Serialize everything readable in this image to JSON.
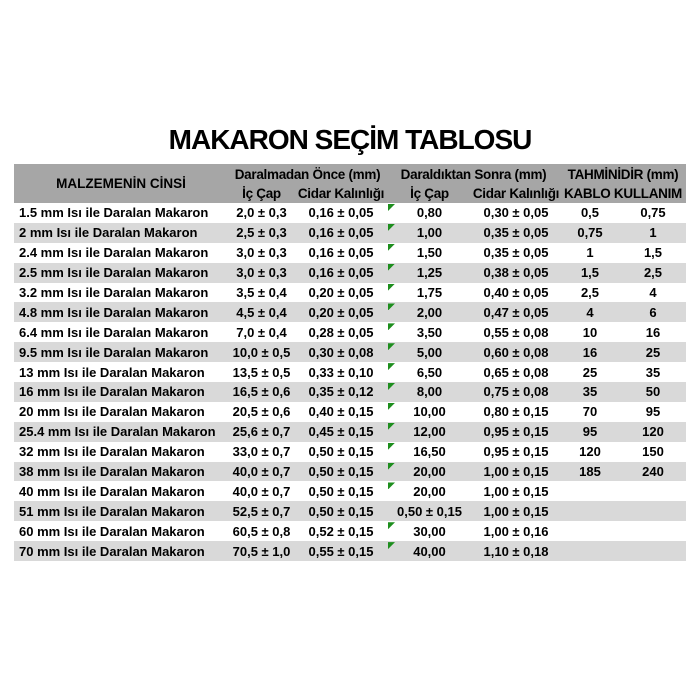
{
  "title": "MAKARON SEÇİM TABLOSU",
  "colors": {
    "header_bg": "#a6a6a6",
    "stripe_bg": "#d9d9d9",
    "text": "#000000",
    "marker_green": "#1e8e1e"
  },
  "table": {
    "col1_header": "MALZEMENİN CİNSİ",
    "groups": [
      {
        "label": "Daralmadan Önce (mm)",
        "sub": [
          "İç Çap",
          "Cidar Kalınlığı"
        ]
      },
      {
        "label": "Daraldıktan Sonra (mm)",
        "sub": [
          "İç Çap",
          "Cidar Kalınlığı"
        ]
      },
      {
        "label": "TAHMİNİDİR (mm)",
        "sub": [
          "KABLO KULLANIM"
        ]
      }
    ],
    "marker_icon": "error-indicator-triangle",
    "rows": [
      {
        "name": "1.5 mm Isı ile Daralan Makaron",
        "cells": [
          "2,0 ± 0,3",
          "0,16 ± 0,05",
          "0,80",
          "0,30 ± 0,05",
          "0,5",
          "0,75"
        ],
        "marker": true
      },
      {
        "name": "2 mm Isı ile Daralan Makaron",
        "cells": [
          "2,5 ± 0,3",
          "0,16 ± 0,05",
          "1,00",
          "0,35 ± 0,05",
          "0,75",
          "1"
        ],
        "marker": true
      },
      {
        "name": "2.4 mm Isı ile Daralan Makaron",
        "cells": [
          "3,0 ± 0,3",
          "0,16 ± 0,05",
          "1,50",
          "0,35 ± 0,05",
          "1",
          "1,5"
        ],
        "marker": true
      },
      {
        "name": "2.5 mm Isı ile Daralan Makaron",
        "cells": [
          "3,0 ± 0,3",
          "0,16 ± 0,05",
          "1,25",
          "0,38 ± 0,05",
          "1,5",
          "2,5"
        ],
        "marker": true
      },
      {
        "name": "3.2 mm Isı ile Daralan Makaron",
        "cells": [
          "3,5 ± 0,4",
          "0,20 ± 0,05",
          "1,75",
          "0,40 ± 0,05",
          "2,5",
          "4"
        ],
        "marker": true
      },
      {
        "name": "4.8 mm Isı ile Daralan Makaron",
        "cells": [
          "4,5 ± 0,4",
          "0,20 ± 0,05",
          "2,00",
          "0,47 ± 0,05",
          "4",
          "6"
        ],
        "marker": true
      },
      {
        "name": "6.4 mm Isı ile Daralan Makaron",
        "cells": [
          "7,0 ± 0,4",
          "0,28 ± 0,05",
          "3,50",
          "0,55 ± 0,08",
          "10",
          "16"
        ],
        "marker": true
      },
      {
        "name": "9.5 mm Isı ile Daralan Makaron",
        "cells": [
          "10,0 ± 0,5",
          "0,30 ± 0,08",
          "5,00",
          "0,60 ± 0,08",
          "16",
          "25"
        ],
        "marker": true
      },
      {
        "name": "13 mm Isı ile Daralan Makaron",
        "cells": [
          "13,5 ± 0,5",
          "0,33 ± 0,10",
          "6,50",
          "0,65 ± 0,08",
          "25",
          "35"
        ],
        "marker": true
      },
      {
        "name": "16 mm Isı ile Daralan Makaron",
        "cells": [
          "16,5 ± 0,6",
          "0,35 ± 0,12",
          "8,00",
          "0,75 ± 0,08",
          "35",
          "50"
        ],
        "marker": true
      },
      {
        "name": "20 mm Isı ile Daralan Makaron",
        "cells": [
          "20,5 ± 0,6",
          "0,40 ± 0,15",
          "10,00",
          "0,80 ± 0,15",
          "70",
          "95"
        ],
        "marker": true
      },
      {
        "name": "25.4 mm Isı ile Daralan Makaron",
        "cells": [
          "25,6 ± 0,7",
          "0,45 ± 0,15",
          "12,00",
          "0,95 ± 0,15",
          "95",
          "120"
        ],
        "marker": true
      },
      {
        "name": "32 mm Isı ile Daralan Makaron",
        "cells": [
          "33,0 ± 0,7",
          "0,50 ± 0,15",
          "16,50",
          "0,95 ± 0,15",
          "120",
          "150"
        ],
        "marker": true
      },
      {
        "name": "38 mm Isı ile Daralan Makaron",
        "cells": [
          "40,0 ± 0,7",
          "0,50 ± 0,15",
          "20,00",
          "1,00 ± 0,15",
          "185",
          "240"
        ],
        "marker": true
      },
      {
        "name": "40 mm Isı ile Daralan Makaron",
        "cells": [
          "40,0 ± 0,7",
          "0,50 ± 0,15",
          "20,00",
          "1,00 ± 0,15",
          "",
          ""
        ],
        "marker": true
      },
      {
        "name": "51 mm Isı ile Daralan Makaron",
        "cells": [
          "52,5 ± 0,7",
          "0,50 ± 0,15",
          "0,50 ± 0,15",
          "1,00 ± 0,15",
          "",
          ""
        ],
        "marker": false
      },
      {
        "name": "60 mm Isı ile Daralan Makaron",
        "cells": [
          "60,5 ± 0,8",
          "0,52 ± 0,15",
          "30,00",
          "1,00 ± 0,16",
          "",
          ""
        ],
        "marker": true
      },
      {
        "name": "70 mm Isı ile Daralan Makaron",
        "cells": [
          "70,5 ± 1,0",
          "0,55 ± 0,15",
          "40,00",
          "1,10 ± 0,18",
          "",
          ""
        ],
        "marker": true
      }
    ]
  }
}
